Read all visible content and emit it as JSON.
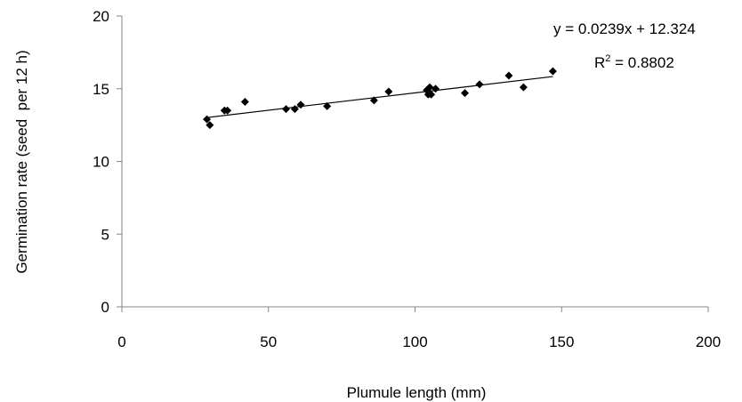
{
  "chart_data": {
    "type": "scatter",
    "title": "",
    "xlabel": "Plumule length (mm)",
    "ylabel": "Germination rate (seed  per 12 h)",
    "xlim": [
      0,
      200
    ],
    "ylim": [
      0,
      20
    ],
    "x_ticks": [
      "0",
      "50",
      "100",
      "150",
      "200"
    ],
    "y_ticks": [
      "0",
      "5",
      "10",
      "15",
      "20"
    ],
    "grid": false,
    "legend": "none",
    "marker_color": "#000000",
    "series": [
      {
        "x": [
          29,
          30,
          35,
          36,
          42,
          56,
          59,
          61,
          70,
          86,
          91,
          104,
          104.5,
          105,
          105.5,
          107,
          117,
          122,
          132,
          137,
          147
        ],
        "y": [
          12.9,
          12.5,
          13.5,
          13.5,
          14.1,
          13.6,
          13.6,
          13.9,
          13.8,
          14.2,
          14.8,
          14.9,
          14.6,
          15.1,
          14.6,
          15.0,
          14.7,
          15.3,
          15.9,
          15.1,
          16.2
        ]
      }
    ],
    "trendline": {
      "slope": 0.0239,
      "intercept": 12.324,
      "x_range": [
        29,
        147
      ],
      "equation_text": "y = 0.0239x + 12.324",
      "r2_prefix": "R",
      "r2_exponent": "2",
      "r2_value": " = 0.8802"
    }
  }
}
